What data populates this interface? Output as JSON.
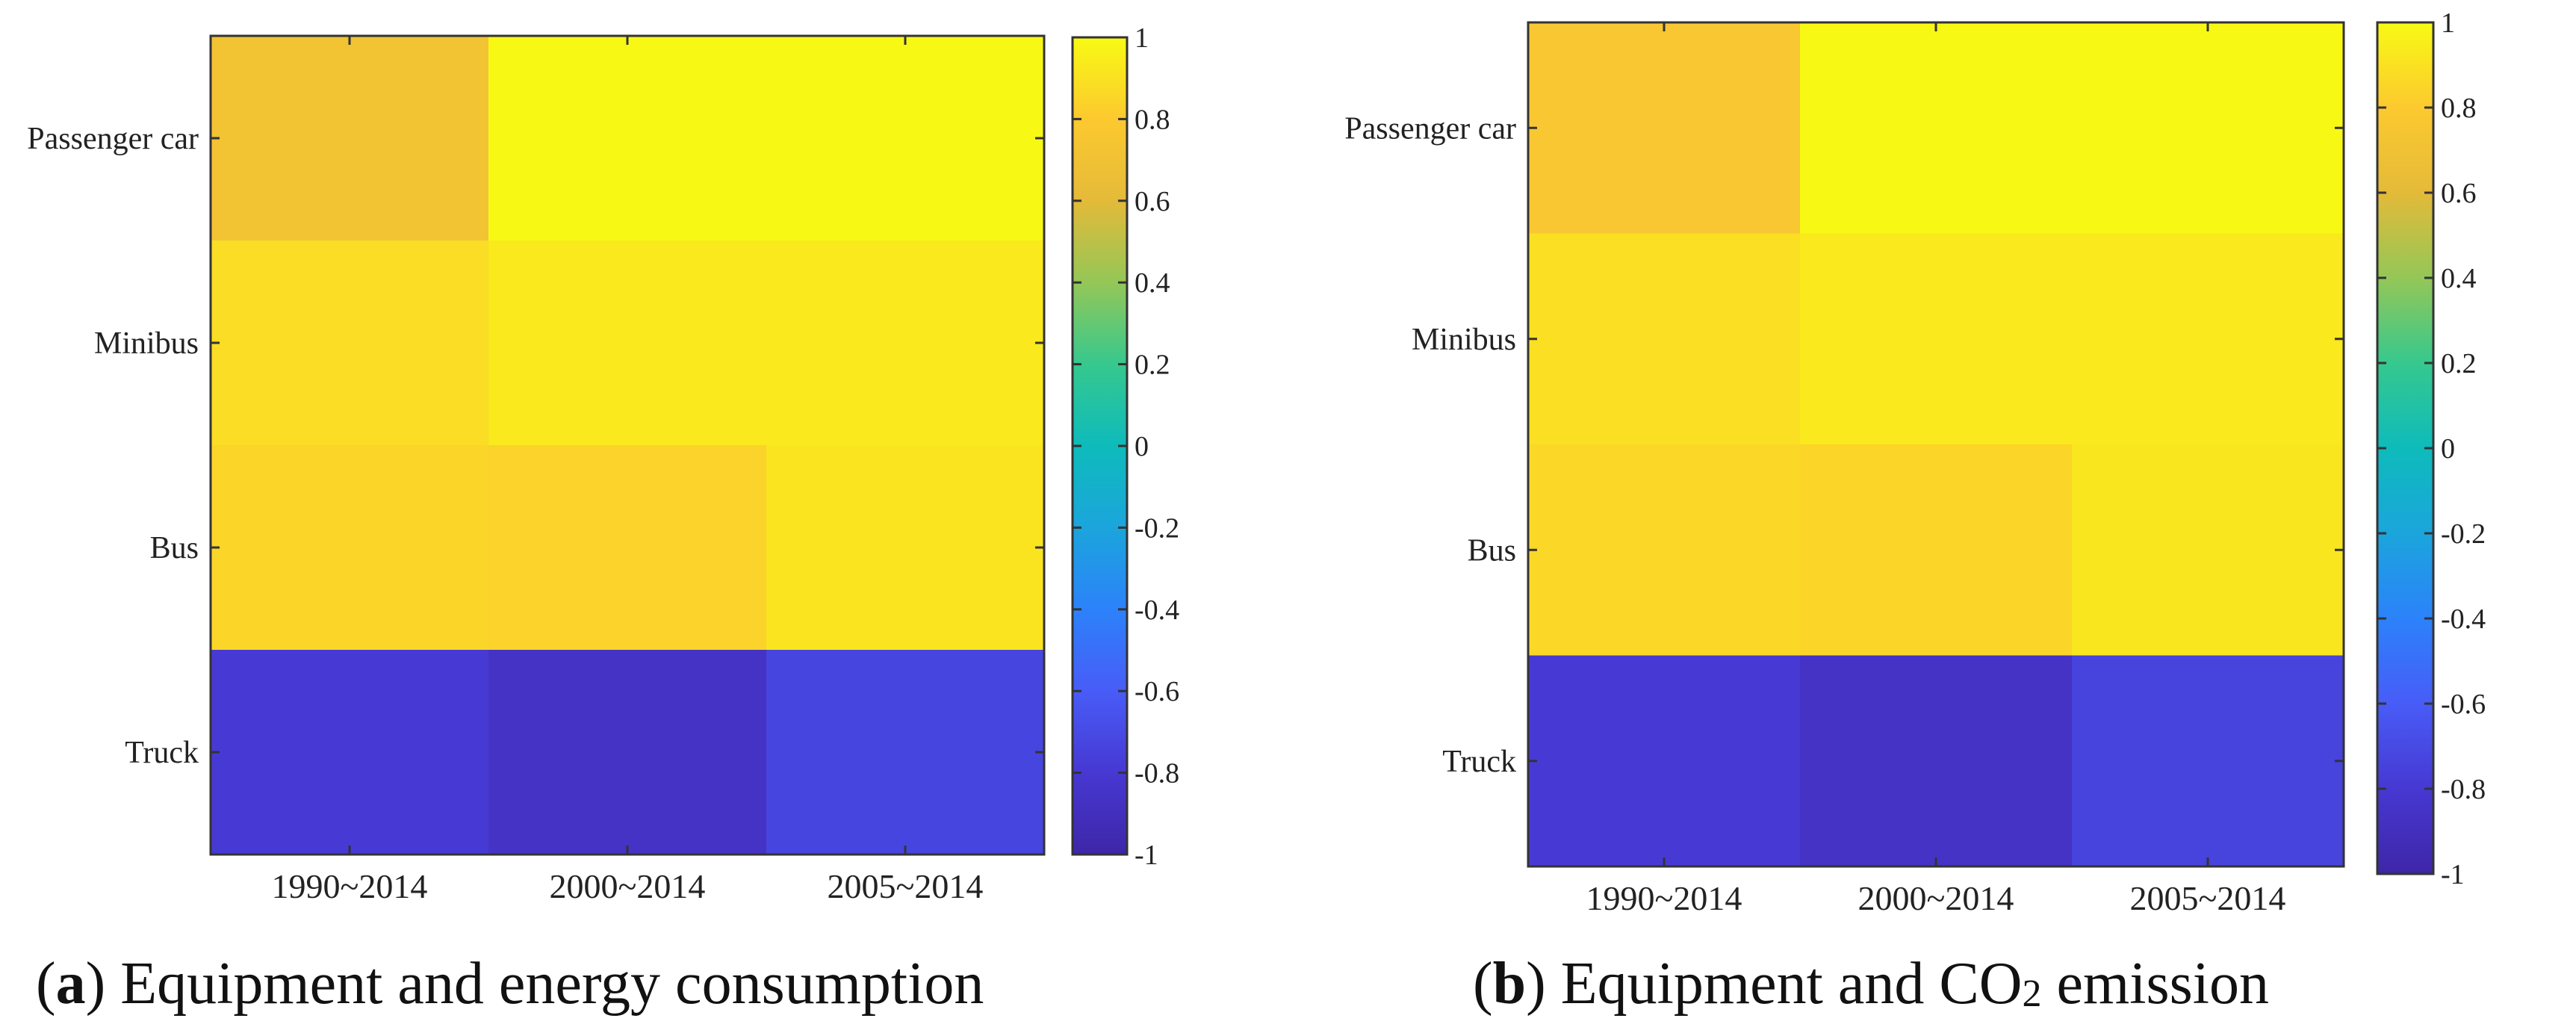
{
  "chart_data": [
    {
      "type": "heatmap",
      "panel_label": "a",
      "caption_text": "Equipment and energy consumption",
      "rows": [
        "Passenger car",
        "Minibus",
        "Bus",
        "Truck"
      ],
      "columns": [
        "1990~2014",
        "2000~2014",
        "2005~2014"
      ],
      "values": [
        [
          0.72,
          0.99,
          0.99
        ],
        [
          0.88,
          0.93,
          0.93
        ],
        [
          0.85,
          0.84,
          0.91
        ],
        [
          -0.79,
          -0.86,
          -0.73
        ]
      ],
      "colorbar": {
        "range": [
          -1,
          1
        ],
        "ticks": [
          -1,
          -0.8,
          -0.6,
          -0.4,
          -0.2,
          0,
          0.2,
          0.4,
          0.6,
          0.8,
          1
        ]
      }
    },
    {
      "type": "heatmap",
      "panel_label": "b",
      "caption_text": "Equipment and CO",
      "caption_subscript": "2",
      "caption_suffix": "emission",
      "rows": [
        "Passenger car",
        "Minibus",
        "Bus",
        "Truck"
      ],
      "columns": [
        "1990~2014",
        "2000~2014",
        "2005~2014"
      ],
      "values": [
        [
          0.77,
          0.99,
          0.99
        ],
        [
          0.89,
          0.93,
          0.93
        ],
        [
          0.86,
          0.85,
          0.92
        ],
        [
          -0.79,
          -0.86,
          -0.74
        ]
      ],
      "colorbar": {
        "range": [
          -1,
          1
        ],
        "ticks": [
          -1,
          -0.8,
          -0.6,
          -0.4,
          -0.2,
          0,
          0.2,
          0.4,
          0.6,
          0.8,
          1
        ]
      }
    }
  ]
}
